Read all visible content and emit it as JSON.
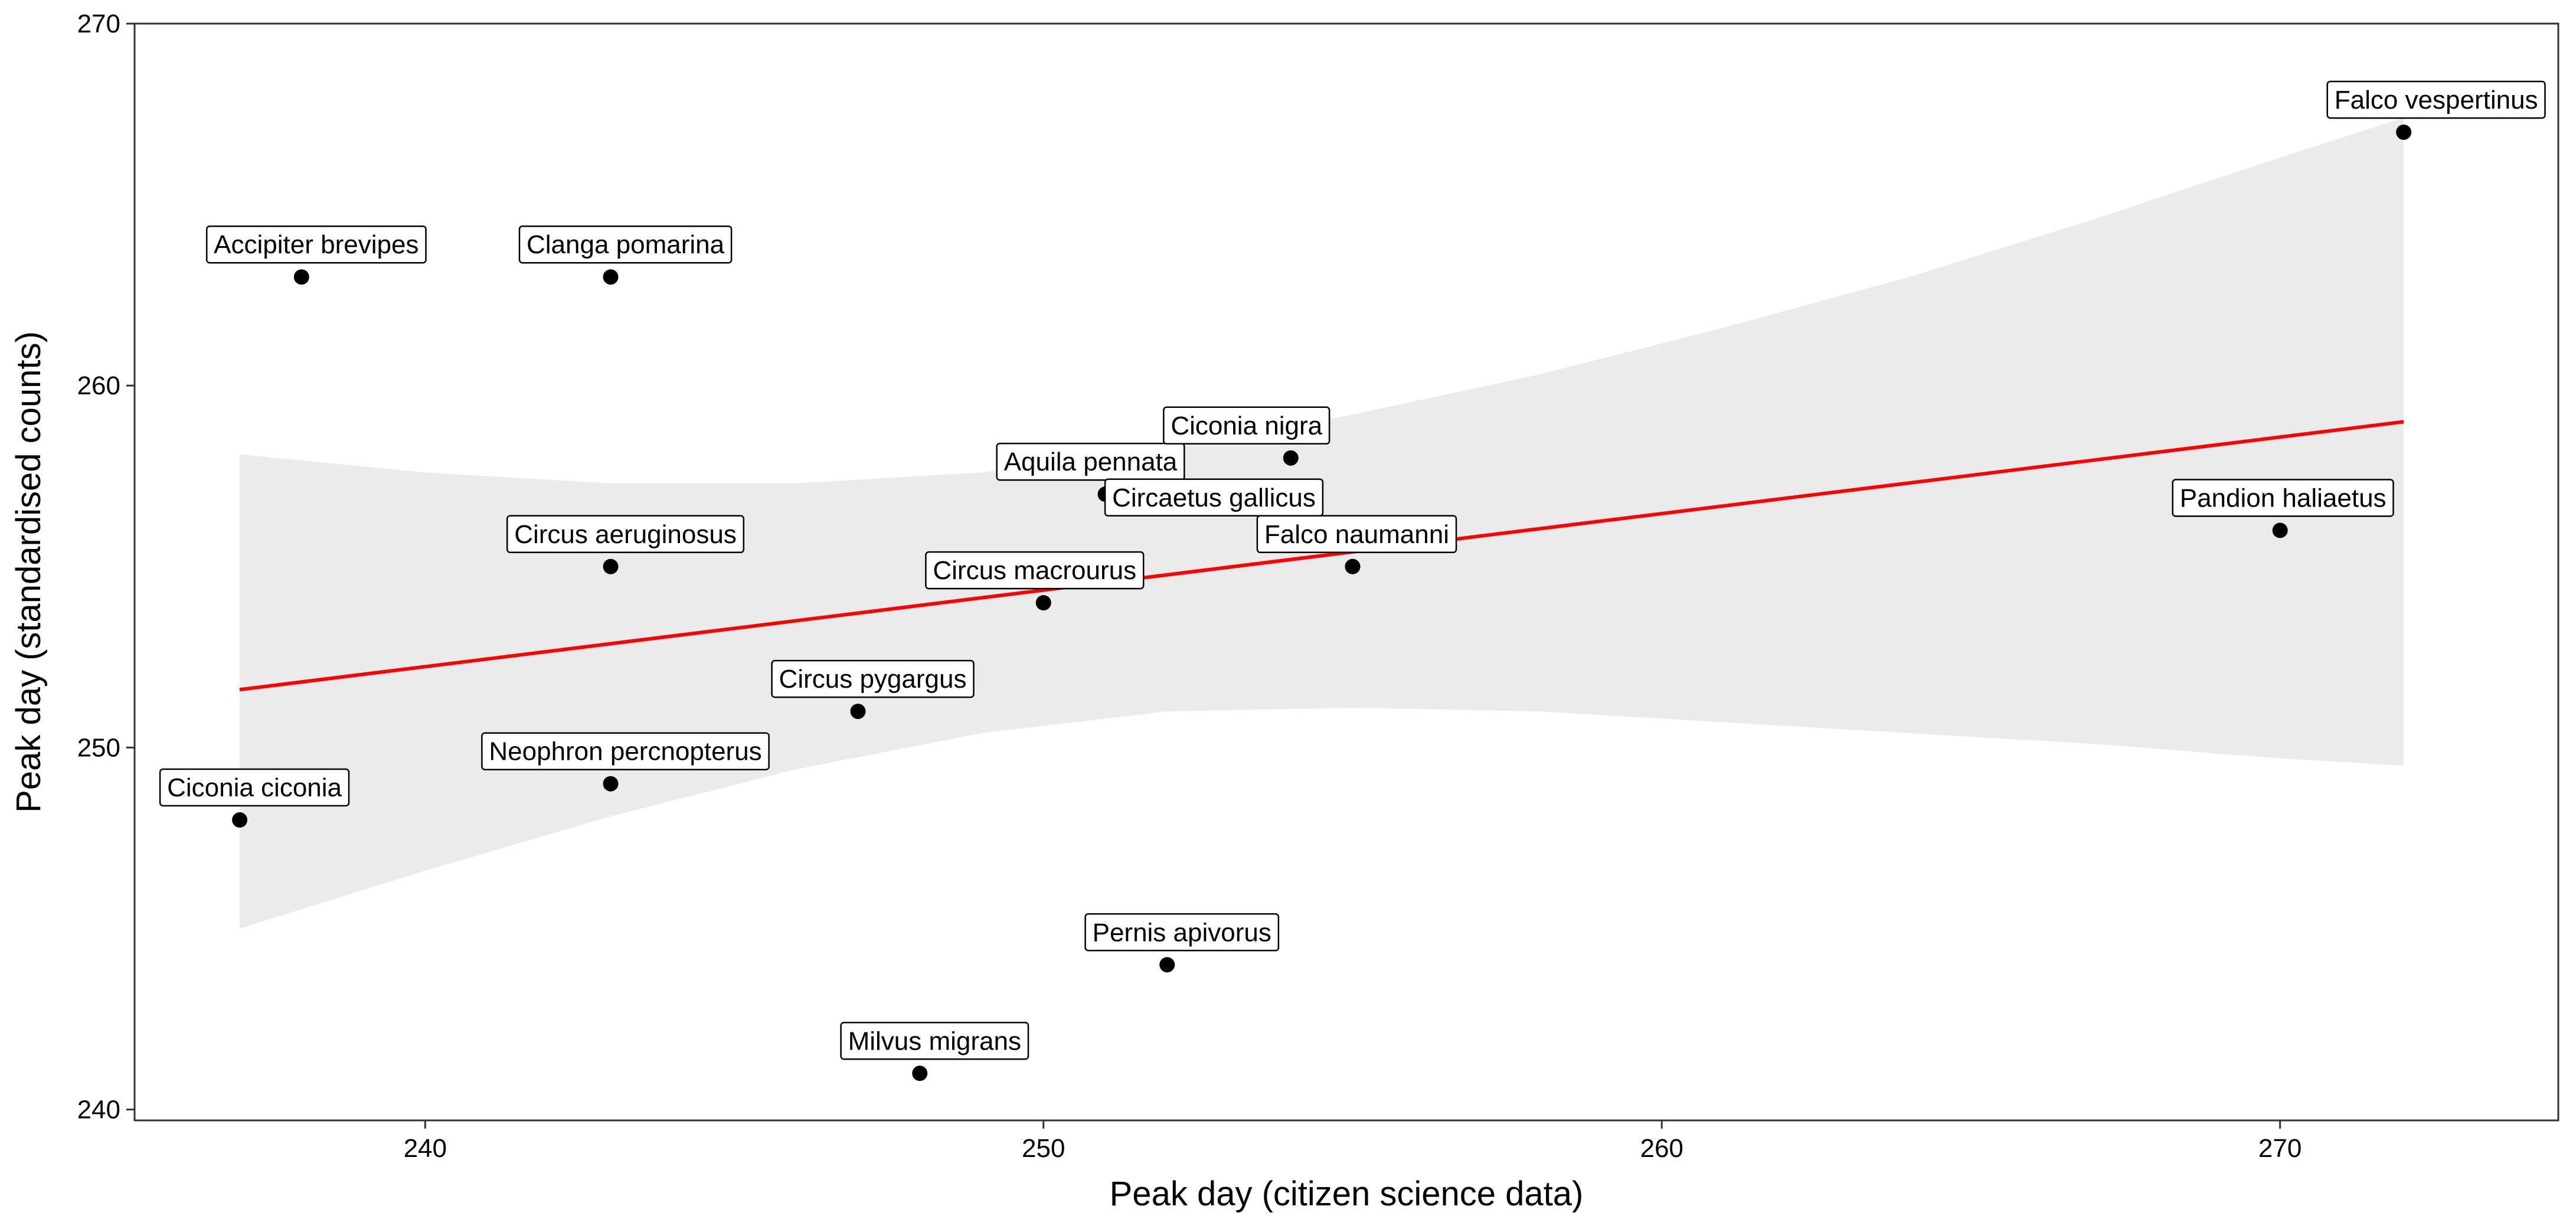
{
  "chart_data": {
    "type": "scatter",
    "title": "",
    "xlabel": "Peak day (citizen science data)",
    "ylabel": "Peak day (standardised counts)",
    "xlim": [
      235.3,
      274.5
    ],
    "ylim": [
      239.7,
      270.0
    ],
    "xticks": [
      "240",
      "250",
      "260",
      "270"
    ],
    "yticks": [
      "240",
      "250",
      "260",
      "270"
    ],
    "grid": false,
    "legend": "none",
    "series": [
      {
        "points": [
          {
            "label": "Ciconia ciconia",
            "x": 237,
            "y": 248
          },
          {
            "label": "Accipiter brevipes",
            "x": 238,
            "y": 263
          },
          {
            "label": "Clanga pomarina",
            "x": 243,
            "y": 263
          },
          {
            "label": "Circus aeruginosus",
            "x": 243,
            "y": 255
          },
          {
            "label": "Neophron percnopterus",
            "x": 243,
            "y": 249
          },
          {
            "label": "Circus pygargus",
            "x": 247,
            "y": 251
          },
          {
            "label": "Milvus migrans",
            "x": 248,
            "y": 241
          },
          {
            "label": "Circus macrourus",
            "x": 250,
            "y": 254
          },
          {
            "label": "Aquila pennata",
            "x": 251,
            "y": 257
          },
          {
            "label": "Pernis apivorus",
            "x": 252,
            "y": 244
          },
          {
            "label": "Ciconia nigra",
            "x": 254,
            "y": 258
          },
          {
            "label": "Circaetus gallicus",
            "x": 255,
            "y": 255
          },
          {
            "label": "Falco naumanni",
            "x": 255,
            "y": 255
          },
          {
            "label": "Pandion haliaetus",
            "x": 270,
            "y": 256
          },
          {
            "label": "Falco vespertinus",
            "x": 272,
            "y": 267
          }
        ]
      }
    ],
    "trend": {
      "type": "linear",
      "x": [
        237,
        272
      ],
      "y": [
        251.6,
        259.0
      ],
      "color": "#ff0000",
      "band": {
        "x": [
          237,
          240,
          243,
          246,
          249,
          252,
          255,
          258,
          261,
          264,
          267,
          270,
          272
        ],
        "lower": [
          245.0,
          246.6,
          248.1,
          249.4,
          250.4,
          251.0,
          251.1,
          251.0,
          250.7,
          250.4,
          250.1,
          249.7,
          249.5
        ],
        "upper": [
          258.1,
          257.6,
          257.3,
          257.3,
          257.6,
          258.3,
          259.2,
          260.3,
          261.6,
          263.0,
          264.6,
          266.3,
          267.4
        ],
        "color": "#ebebeb"
      }
    },
    "colors": {
      "point": "#000000",
      "trend_line": "#ff0000",
      "confidence_band": "#ebebeb"
    }
  }
}
